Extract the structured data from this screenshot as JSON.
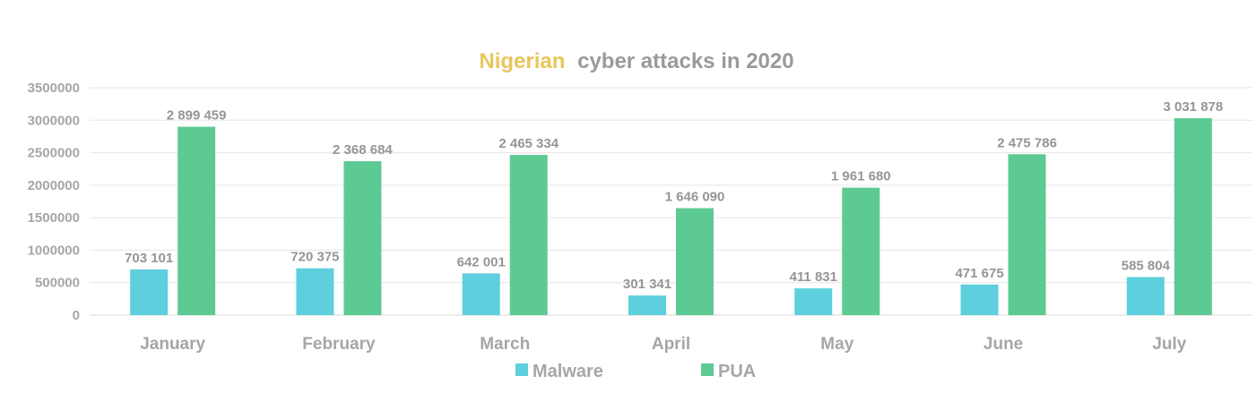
{
  "chart_data": {
    "type": "bar",
    "title_accent": "Nigerian",
    "title_rest": "cyber attacks in 2020",
    "categories": [
      "January",
      "February",
      "March",
      "April",
      "May",
      "June",
      "July"
    ],
    "series": [
      {
        "name": "Malware",
        "color": "#5ecfdc",
        "values": [
          703101,
          720375,
          642001,
          301341,
          411831,
          471675,
          585804
        ],
        "labels": [
          "703 101",
          "720 375",
          "642 001",
          "301 341",
          "411 831",
          "471 675",
          "585 804"
        ]
      },
      {
        "name": "PUA",
        "color": "#5dca93",
        "values": [
          2899459,
          2368684,
          2465334,
          1646090,
          1961680,
          2475786,
          3031878
        ],
        "labels": [
          "2 899 459",
          "2 368 684",
          "2 465 334",
          "1 646 090",
          "1 961 680",
          "2 475 786",
          "3 031 878"
        ]
      }
    ],
    "yticks": [
      "0",
      "500000",
      "1000000",
      "1500000",
      "2000000",
      "2500000",
      "3000000",
      "3500000"
    ],
    "ylim": [
      0,
      3500000
    ],
    "grid": true,
    "legend_position": "bottom-center",
    "title_accent_color": "#e8c65a",
    "title_color": "#9a9a9a"
  }
}
